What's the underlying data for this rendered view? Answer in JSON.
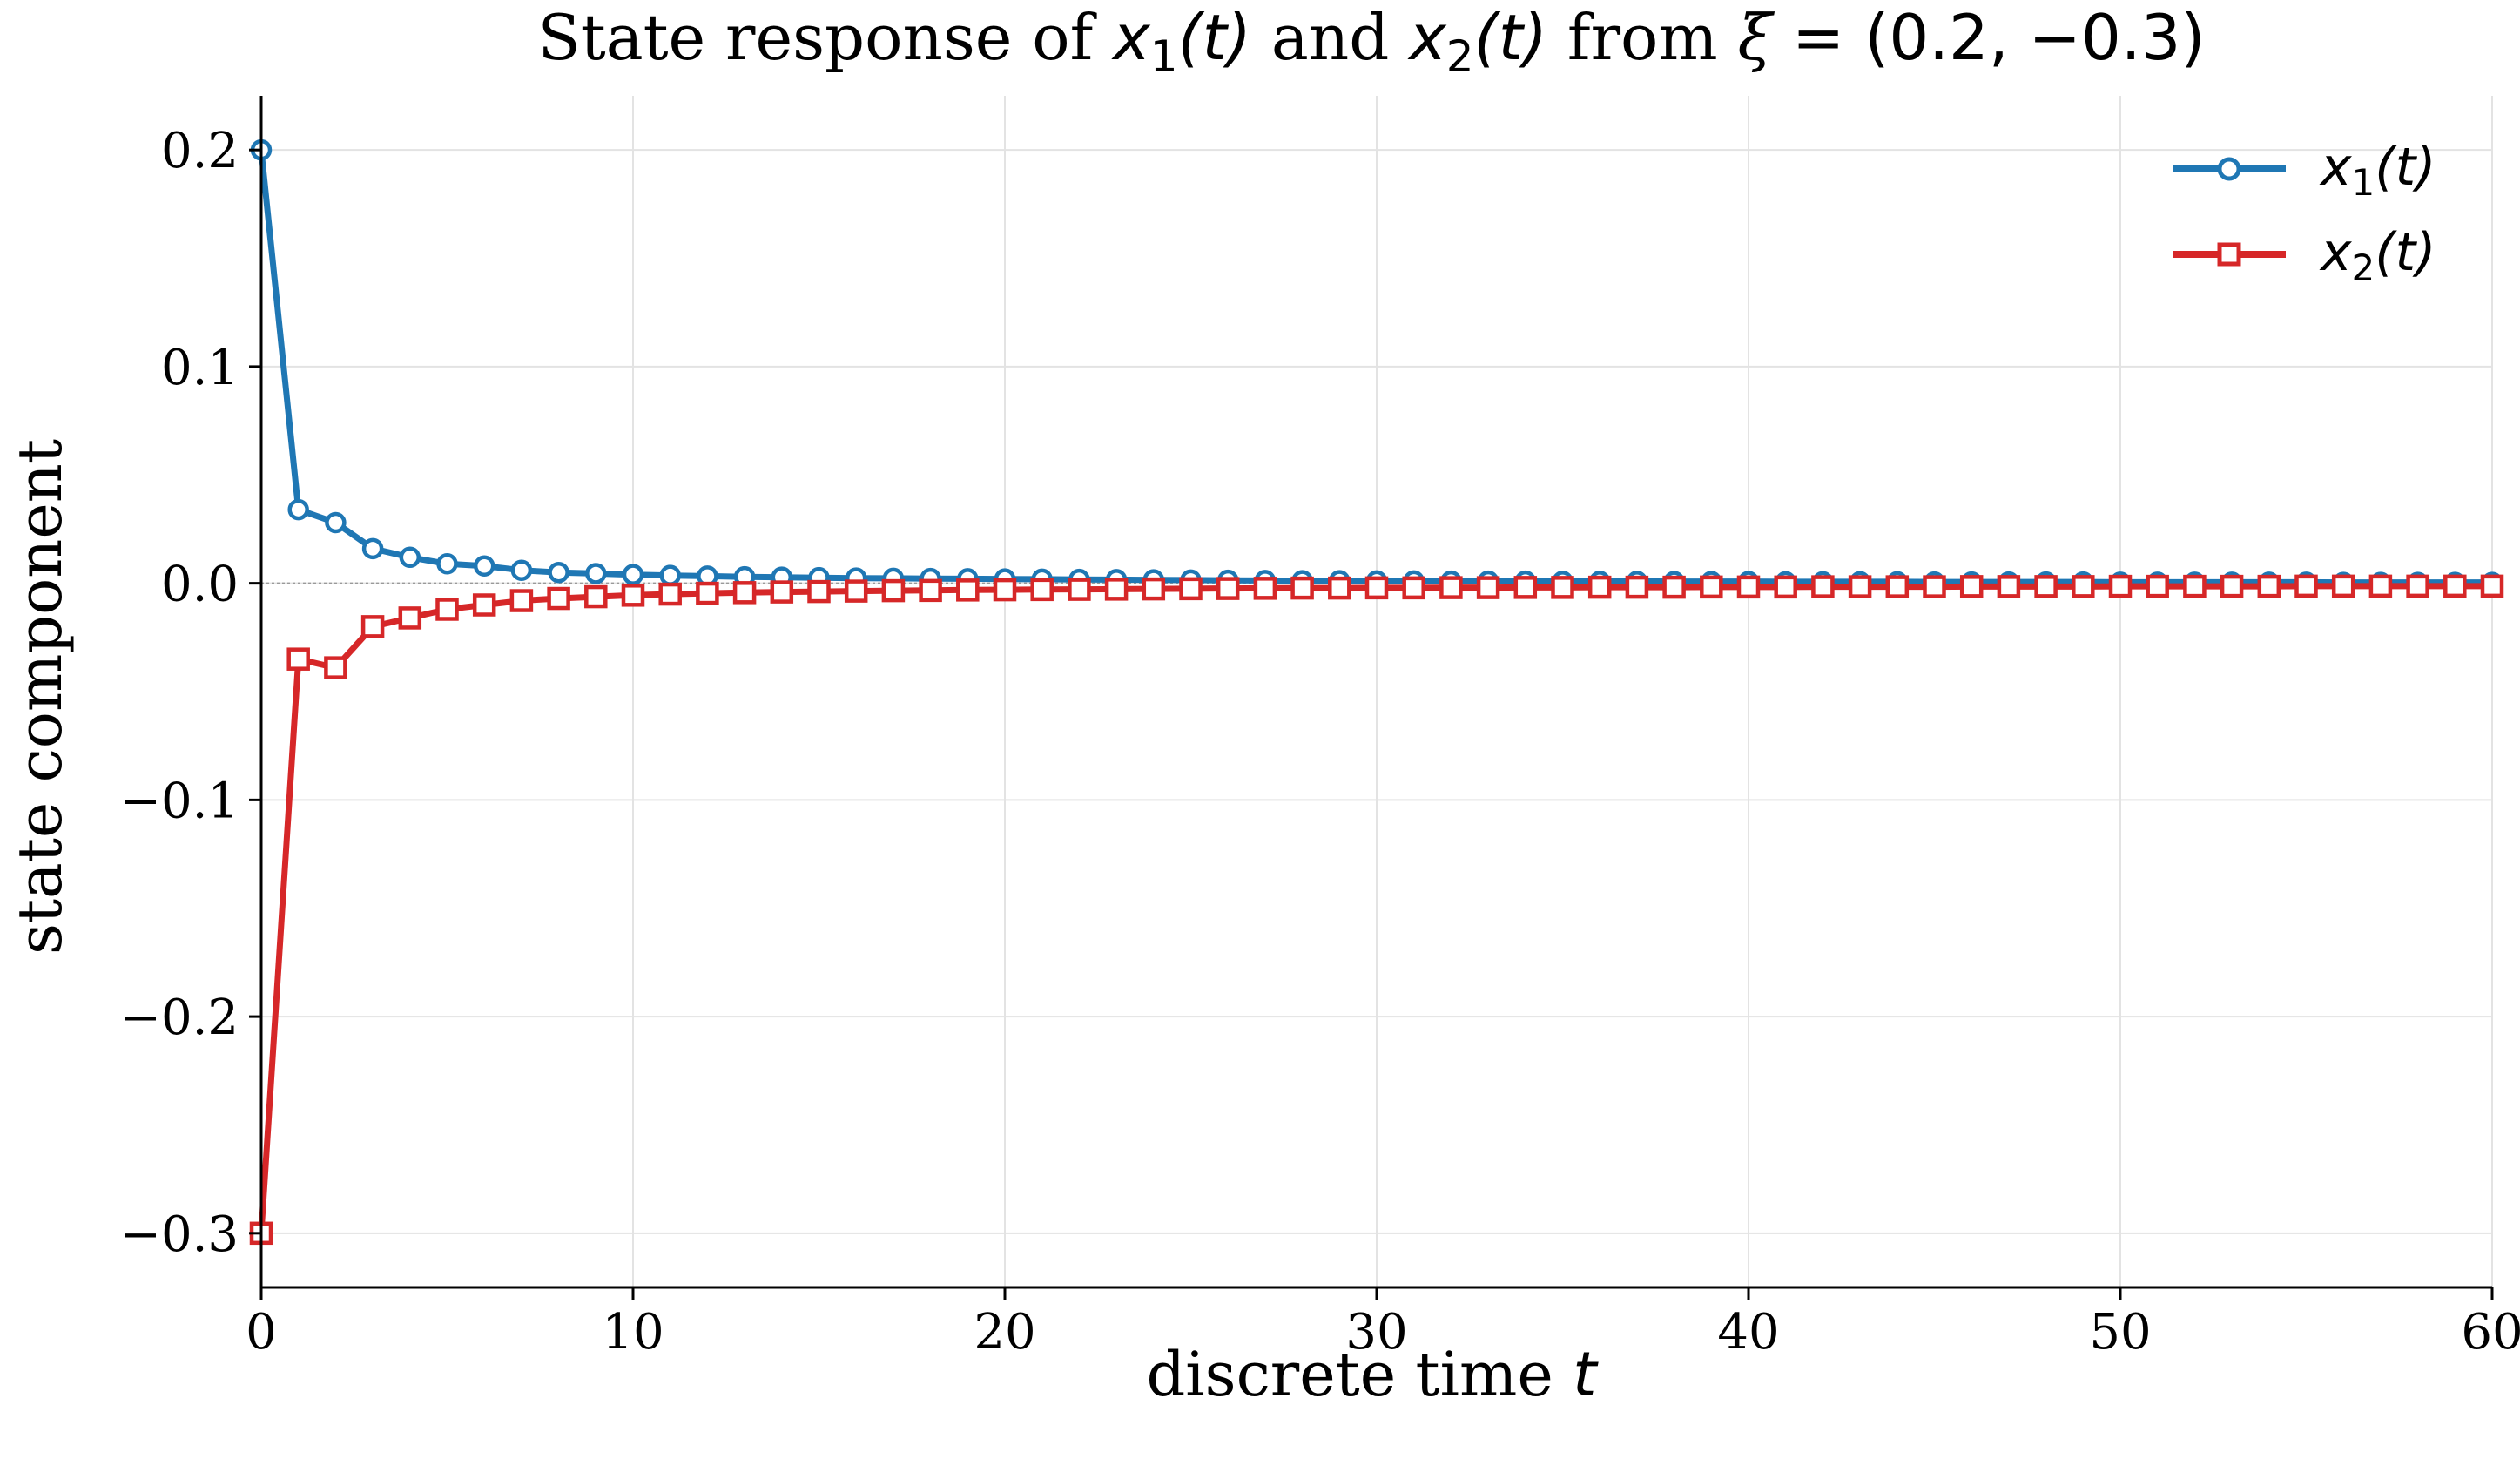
{
  "chart_data": {
    "type": "line",
    "title": {
      "prefix": "State response of ",
      "x1_base": "x",
      "x1_sub": "1",
      "x1_arg": "(t)",
      "mid": " and ",
      "x2_base": "x",
      "x2_sub": "2",
      "x2_arg": "(t)",
      "from": " from ",
      "xi": "ξ",
      "eq": " = ",
      "vec": "(0.2, −0.3)"
    },
    "xlabel": {
      "text": "discrete time ",
      "var": "t"
    },
    "ylabel": "state component",
    "xlim": [
      0,
      60
    ],
    "ylim": [
      -0.325,
      0.225
    ],
    "x_ticks": [
      0,
      10,
      20,
      30,
      40,
      50,
      60
    ],
    "x_tick_labels": [
      "0",
      "10",
      "20",
      "30",
      "40",
      "50",
      "60"
    ],
    "y_ticks": [
      -0.3,
      -0.2,
      -0.1,
      0.0,
      0.1,
      0.2
    ],
    "y_tick_labels": [
      "−0.3",
      "−0.2",
      "−0.1",
      "0.0",
      "0.1",
      "0.2"
    ],
    "grid": true,
    "zero_line": true,
    "legend_position": "top-right",
    "x": [
      0,
      1,
      2,
      3,
      4,
      5,
      6,
      7,
      8,
      9,
      10,
      11,
      12,
      13,
      14,
      15,
      16,
      17,
      18,
      19,
      20,
      21,
      22,
      23,
      24,
      25,
      26,
      27,
      28,
      29,
      30,
      31,
      32,
      33,
      34,
      35,
      36,
      37,
      38,
      39,
      40,
      41,
      42,
      43,
      44,
      45,
      46,
      47,
      48,
      49,
      50,
      51,
      52,
      53,
      54,
      55,
      56,
      57,
      58,
      59,
      60
    ],
    "series": [
      {
        "name": "x1(t)",
        "legend_base": "x",
        "legend_sub": "1",
        "legend_arg": "(t)",
        "color": "#1f77b4",
        "marker": "circle",
        "values": [
          0.2,
          0.034,
          0.028,
          0.016,
          0.012,
          0.009,
          0.008,
          0.006,
          0.005,
          0.0045,
          0.004,
          0.0036,
          0.0033,
          0.003,
          0.0028,
          0.0026,
          0.0024,
          0.0023,
          0.0022,
          0.0021,
          0.002,
          0.0019,
          0.0018,
          0.0017,
          0.0016,
          0.0015,
          0.0014,
          0.0013,
          0.0012,
          0.0012,
          0.0011,
          0.0011,
          0.001,
          0.001,
          0.001,
          0.0009,
          0.0009,
          0.0009,
          0.0008,
          0.0008,
          0.0008,
          0.0007,
          0.0007,
          0.0007,
          0.0007,
          0.0006,
          0.0006,
          0.0006,
          0.0006,
          0.0006,
          0.0005,
          0.0005,
          0.0005,
          0.0005,
          0.0005,
          0.0005,
          0.0004,
          0.0004,
          0.0004,
          0.0004,
          0.0004
        ]
      },
      {
        "name": "x2(t)",
        "legend_base": "x",
        "legend_sub": "2",
        "legend_arg": "(t)",
        "color": "#d62728",
        "marker": "square",
        "values": [
          -0.3,
          -0.035,
          -0.039,
          -0.02,
          -0.016,
          -0.012,
          -0.01,
          -0.008,
          -0.007,
          -0.0062,
          -0.0055,
          -0.005,
          -0.0046,
          -0.0043,
          -0.004,
          -0.0038,
          -0.0036,
          -0.0034,
          -0.0033,
          -0.0031,
          -0.003,
          -0.0029,
          -0.0028,
          -0.0027,
          -0.0026,
          -0.0025,
          -0.0024,
          -0.0023,
          -0.0022,
          -0.0022,
          -0.0021,
          -0.0021,
          -0.002,
          -0.002,
          -0.0019,
          -0.0019,
          -0.0018,
          -0.0018,
          -0.0018,
          -0.0017,
          -0.0017,
          -0.0017,
          -0.0016,
          -0.0016,
          -0.0016,
          -0.0016,
          -0.0015,
          -0.0015,
          -0.0015,
          -0.0015,
          -0.0014,
          -0.0014,
          -0.0014,
          -0.0014,
          -0.0014,
          -0.0013,
          -0.0013,
          -0.0013,
          -0.0013,
          -0.0013,
          -0.0013
        ]
      }
    ]
  }
}
